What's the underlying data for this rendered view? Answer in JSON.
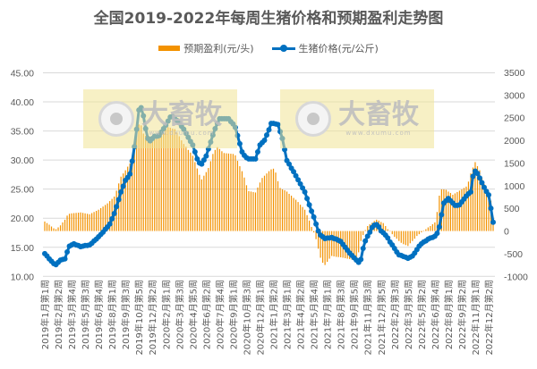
{
  "chart_data": {
    "type": "bar+line",
    "title": "全国2019-2022年每周生猪价格和预期盈利走势图",
    "legend_position": "top",
    "grid": true,
    "colors": {
      "profit": "#F39200",
      "price": "#0070C0",
      "grid": "#d9d9d9",
      "text": "#595959"
    },
    "left_axis": {
      "ylim": [
        10,
        45
      ],
      "ticks": [
        "10.00",
        "15.00",
        "20.00",
        "25.00",
        "30.00",
        "35.00",
        "40.00",
        "45.00"
      ]
    },
    "right_axis": {
      "ylim": [
        -1000,
        3500
      ],
      "ticks": [
        "-1000",
        "-500",
        "0",
        "500",
        "1000",
        "1500",
        "2000",
        "2500",
        "3000",
        "3500"
      ]
    },
    "x_tick_labels": [
      "2019年1月第1周",
      "2019年2月第2周",
      "2019年3月第4周",
      "2019年5月第3周",
      "2019年6月第4周",
      "2019年8月第1周",
      "2019年9月第3周",
      "2019年10月第5周",
      "2019年12月第2周",
      "2020年2月第1周",
      "2020年3月第3周",
      "2020年4月第5周",
      "2020年6月第2周",
      "2020年7月第4周",
      "2020年9月第1周",
      "2020年10月第3周",
      "2020年12月第1周",
      "2021年1月第2周",
      "2021年3月第1周",
      "2021年4月第2周",
      "2021年5月第4周",
      "2021年7月第1周",
      "2021年8月第3周",
      "2021年9月第5周",
      "2021年11月第3周",
      "2021年12月第5周",
      "2022年2月第3周",
      "2022年3月第5周",
      "2022年5月第2周",
      "2022年6月第4周",
      "2022年8月第1周",
      "2022年9月第2周",
      "2022年11月第1周",
      "2022年12月第2周"
    ],
    "series": [
      {
        "name": "预期盈利(元/头)",
        "type": "bar",
        "axis": "right",
        "values": [
          210,
          175,
          140,
          100,
          60,
          40,
          80,
          125,
          190,
          250,
          340,
          380,
          390,
          395,
          400,
          405,
          410,
          400,
          390,
          380,
          370,
          395,
          420,
          445,
          470,
          505,
          540,
          575,
          610,
          660,
          710,
          760,
          890,
          1050,
          1200,
          1270,
          1340,
          1420,
          1490,
          1550,
          1830,
          2150,
          2350,
          2330,
          2150,
          2100,
          2050,
          2080,
          2100,
          2130,
          2150,
          2180,
          2210,
          2240,
          2270,
          2290,
          2280,
          2260,
          2250,
          2170,
          2090,
          2000,
          1920,
          1860,
          1790,
          1730,
          1660,
          1520,
          1380,
          1240,
          1140,
          1220,
          1300,
          1390,
          1540,
          1700,
          1790,
          1850,
          1810,
          1760,
          1720,
          1715,
          1710,
          1705,
          1700,
          1670,
          1550,
          1430,
          1320,
          1180,
          1010,
          880,
          870,
          860,
          850,
          960,
          1070,
          1170,
          1220,
          1270,
          1320,
          1360,
          1375,
          1290,
          1100,
          950,
          920,
          900,
          870,
          820,
          780,
          730,
          690,
          640,
          580,
          530,
          470,
          350,
          230,
          90,
          -30,
          -180,
          -390,
          -590,
          -700,
          -750,
          -680,
          -610,
          -550,
          -560,
          -570,
          -575,
          -580,
          -590,
          -600,
          -610,
          -620,
          -630,
          -645,
          -660,
          -470,
          -220,
          -90,
          20,
          110,
          150,
          180,
          220,
          250,
          230,
          200,
          175,
          110,
          40,
          -10,
          -70,
          -130,
          -170,
          -220,
          -260,
          -290,
          -310,
          -330,
          -270,
          -220,
          -170,
          -110,
          -70,
          -30,
          10,
          40,
          80,
          110,
          150,
          190,
          420,
          780,
          920,
          920,
          910,
          870,
          840,
          800,
          830,
          860,
          890,
          920,
          950,
          980,
          1090,
          1270,
          1400,
          1520,
          1430,
          1340,
          1180,
          1040,
          880,
          820,
          670,
          200
        ]
      },
      {
        "name": "生猪价格(元/公斤)",
        "type": "line",
        "axis": "left",
        "values": [
          13.9,
          13.5,
          13.0,
          12.6,
          12.2,
          12.0,
          12.4,
          12.8,
          12.9,
          13.0,
          14.2,
          15.2,
          15.4,
          15.6,
          15.4,
          15.3,
          15.1,
          15.2,
          15.3,
          15.3,
          15.4,
          15.7,
          16.1,
          16.4,
          16.8,
          17.2,
          17.6,
          18.1,
          18.5,
          19.0,
          19.9,
          20.8,
          22.0,
          23.2,
          24.5,
          25.5,
          26.5,
          27.0,
          27.6,
          29.8,
          32.3,
          35.3,
          38.6,
          39.0,
          37.6,
          35.4,
          33.7,
          33.3,
          33.7,
          34.1,
          34.1,
          34.2,
          34.8,
          35.4,
          36.0,
          36.7,
          37.4,
          37.5,
          37.1,
          36.8,
          36.4,
          35.8,
          35.3,
          34.6,
          33.9,
          33.2,
          32.6,
          31.4,
          30.2,
          29.5,
          29.3,
          30.0,
          30.7,
          31.9,
          33.1,
          34.3,
          35.4,
          36.3,
          37.1,
          37.1,
          37.1,
          37.1,
          37.1,
          36.6,
          36.2,
          35.6,
          34.2,
          32.8,
          31.4,
          30.8,
          30.4,
          30.2,
          30.2,
          30.2,
          30.2,
          31.4,
          32.6,
          33.0,
          33.4,
          34.3,
          35.2,
          36.3,
          36.3,
          36.2,
          36.1,
          34.9,
          33.7,
          31.8,
          29.9,
          29.3,
          28.6,
          28.0,
          27.3,
          26.6,
          25.9,
          25.2,
          24.5,
          23.4,
          22.3,
          21.2,
          20.2,
          19.0,
          17.8,
          17.1,
          16.8,
          16.5,
          16.6,
          16.6,
          16.7,
          16.5,
          16.4,
          16.2,
          16.0,
          15.5,
          15.0,
          14.5,
          14.0,
          13.6,
          13.2,
          12.8,
          12.4,
          12.9,
          14.8,
          16.1,
          16.9,
          17.6,
          18.4,
          18.8,
          18.9,
          18.5,
          17.8,
          17.5,
          17.1,
          16.6,
          15.9,
          15.4,
          14.8,
          14.2,
          13.7,
          13.6,
          13.4,
          13.3,
          13.1,
          13.3,
          13.5,
          14.0,
          14.6,
          15.2,
          15.6,
          15.9,
          16.1,
          16.4,
          16.6,
          16.7,
          16.9,
          17.4,
          18.5,
          20.6,
          22.6,
          23.0,
          23.4,
          23.0,
          22.6,
          22.2,
          22.2,
          22.3,
          22.8,
          23.3,
          23.8,
          24.2,
          24.5,
          27.2,
          28.1,
          27.7,
          26.9,
          26.1,
          25.3,
          24.6,
          24.0,
          21.7,
          19.3
        ]
      }
    ]
  },
  "watermark": {
    "name": "大畜牧",
    "url": "www.dxumu.com"
  }
}
